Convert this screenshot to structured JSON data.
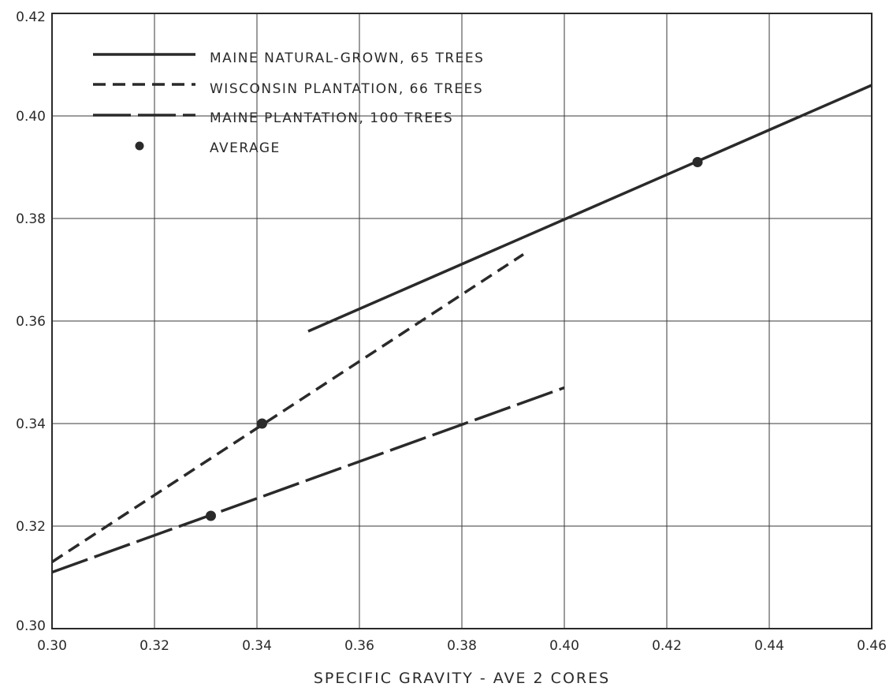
{
  "chart_data": {
    "type": "line",
    "title": "",
    "xlabel": "SPECIFIC GRAVITY - AVE 2 CORES",
    "ylabel": "",
    "xlim": [
      0.3,
      0.46
    ],
    "ylim": [
      0.3,
      0.42
    ],
    "x_ticks": [
      "0.30",
      "0.32",
      "0.34",
      "0.36",
      "0.38",
      "0.40",
      "0.42",
      "0.44",
      "0.46"
    ],
    "y_ticks": [
      "0.30",
      "0.32",
      "0.34",
      "0.36",
      "0.38",
      "0.40",
      "0.42"
    ],
    "grid": true,
    "legend_position": "top-left",
    "line_color": "#2a2a2a",
    "series": [
      {
        "name": "MAINE NATURAL-GROWN, 65 TREES",
        "style": "solid",
        "points": [
          [
            0.35,
            0.358
          ],
          [
            0.46,
            0.406
          ]
        ],
        "average": [
          0.426,
          0.391
        ]
      },
      {
        "name": "WISCONSIN PLANTATION, 66 TREES",
        "style": "dashed",
        "points": [
          [
            0.3,
            0.313
          ],
          [
            0.392,
            0.373
          ]
        ],
        "average": [
          0.341,
          0.34
        ]
      },
      {
        "name": "MAINE PLANTATION, 100 TREES",
        "style": "long-dash",
        "points": [
          [
            0.3,
            0.311
          ],
          [
            0.4,
            0.347
          ]
        ],
        "average": [
          0.331,
          0.322
        ]
      }
    ],
    "average_legend_label": "AVERAGE"
  }
}
